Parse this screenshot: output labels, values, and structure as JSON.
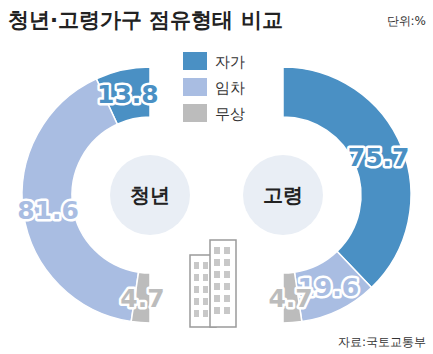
{
  "chart_data": {
    "type": "donut",
    "title": "청년·고령가구 점유형태 비교",
    "unit": "단위:%",
    "source": "자료:국토교통부",
    "categories": [
      "자가",
      "임차",
      "무상"
    ],
    "colors": [
      "#4a90c4",
      "#a9bde2",
      "#bcbcbc"
    ],
    "series": [
      {
        "name": "청년",
        "values": [
          13.8,
          81.6,
          4.7
        ]
      },
      {
        "name": "고령",
        "values": [
          75.7,
          19.6,
          4.7
        ]
      }
    ],
    "data_labels": true,
    "legend": "top"
  }
}
